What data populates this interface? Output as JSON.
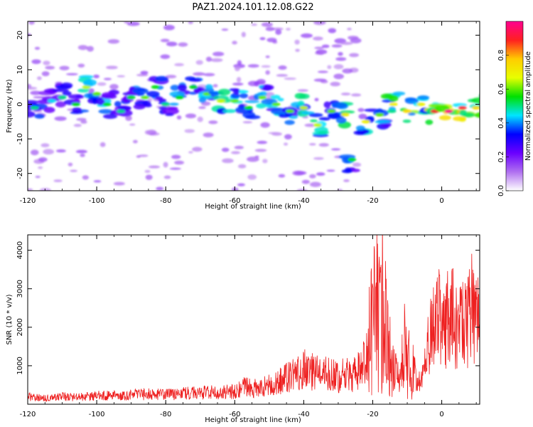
{
  "chart_data": [
    {
      "type": "heatmap",
      "title": "PAZ1.2024.101.12.08.G22",
      "xlabel": "Height of straight line (km)",
      "ylabel": "Frequency (Hz)",
      "xlim": [
        -120,
        11
      ],
      "ylim": [
        -25,
        24
      ],
      "x_ticks": [
        -120,
        -100,
        -80,
        -60,
        -40,
        -20,
        0
      ],
      "y_ticks": [
        -20,
        -10,
        0,
        10,
        20
      ],
      "colorbar": {
        "label": "Normalized spectral amplitude",
        "ticks": [
          "0.0",
          "0.2",
          "0.4",
          "0.6",
          "0.8"
        ],
        "range": [
          0,
          1
        ],
        "colormap": [
          "#ffffff",
          "#b070f0",
          "#6a00ff",
          "#0000ff",
          "#00e5ff",
          "#00e000",
          "#e8ff00",
          "#ffcc00",
          "#ff2020",
          "#ff0090"
        ]
      },
      "features": [
        {
          "x": -118,
          "y": -1,
          "a": 0.35
        },
        {
          "x": -113,
          "y": 1,
          "a": 0.3
        },
        {
          "x": -110,
          "y": 2,
          "a": 0.35
        },
        {
          "x": -106,
          "y": 0,
          "a": 0.4
        },
        {
          "x": -103,
          "y": 5,
          "a": 0.5
        },
        {
          "x": -100,
          "y": 3,
          "a": 0.45
        },
        {
          "x": -97,
          "y": 0,
          "a": 0.4
        },
        {
          "x": -93,
          "y": -2,
          "a": 0.35
        },
        {
          "x": -90,
          "y": 2,
          "a": 0.4
        },
        {
          "x": -86,
          "y": 2,
          "a": 0.45
        },
        {
          "x": -83,
          "y": 5,
          "a": 0.4
        },
        {
          "x": -80,
          "y": 0,
          "a": 0.35
        },
        {
          "x": -76,
          "y": 2,
          "a": 0.4
        },
        {
          "x": -72,
          "y": 5,
          "a": 0.4
        },
        {
          "x": -68,
          "y": 3,
          "a": 0.45
        },
        {
          "x": -64,
          "y": 1,
          "a": 0.5
        },
        {
          "x": -60,
          "y": 1,
          "a": 0.45
        },
        {
          "x": -56,
          "y": -1,
          "a": 0.4
        },
        {
          "x": -52,
          "y": 2,
          "a": 0.45
        },
        {
          "x": -48,
          "y": 0,
          "a": 0.45
        },
        {
          "x": -44,
          "y": -2,
          "a": 0.45
        },
        {
          "x": -40,
          "y": -1,
          "a": 0.5
        },
        {
          "x": -36,
          "y": -6,
          "a": 0.5
        },
        {
          "x": -32,
          "y": -2,
          "a": 0.45
        },
        {
          "x": -28,
          "y": -3,
          "a": 0.55
        },
        {
          "x": -26,
          "y": -16,
          "a": 0.4
        },
        {
          "x": -22,
          "y": -5,
          "a": 0.55
        },
        {
          "x": -18,
          "y": -3,
          "a": 0.45
        },
        {
          "x": -14,
          "y": 0,
          "a": 0.55
        },
        {
          "x": -10,
          "y": -2,
          "a": 0.6
        },
        {
          "x": -6,
          "y": 0,
          "a": 0.55
        },
        {
          "x": -2,
          "y": -2,
          "a": 0.75
        },
        {
          "x": 2,
          "y": -2,
          "a": 0.85
        },
        {
          "x": 6,
          "y": -1,
          "a": 0.75
        },
        {
          "x": 10,
          "y": -1,
          "a": 0.6
        }
      ]
    },
    {
      "type": "line",
      "xlabel": "Height of straight line (km)",
      "ylabel": "SNR (10 * v/v)",
      "xlim": [
        -120,
        11
      ],
      "ylim": [
        0,
        4400
      ],
      "x_ticks": [
        -120,
        -100,
        -80,
        -60,
        -40,
        -20,
        0
      ],
      "y_ticks": [
        1000,
        2000,
        3000,
        4000
      ],
      "color": "#ee2020",
      "x": [
        -120,
        -115,
        -110,
        -105,
        -100,
        -95,
        -90,
        -85,
        -80,
        -75,
        -70,
        -65,
        -60,
        -57,
        -55,
        -50,
        -46,
        -44,
        -42,
        -40,
        -38,
        -35,
        -32,
        -30,
        -28,
        -26,
        -24,
        -22,
        -21,
        -20,
        -19,
        -18,
        -17,
        -16,
        -15,
        -14,
        -13,
        -12,
        -11,
        -10,
        -9,
        -8,
        -7,
        -6,
        -5,
        -4,
        -3,
        -2,
        -1,
        0,
        2,
        4,
        6,
        8,
        9,
        10,
        11
      ],
      "y": [
        200,
        150,
        200,
        180,
        220,
        220,
        240,
        260,
        250,
        280,
        300,
        310,
        330,
        450,
        400,
        500,
        650,
        700,
        800,
        900,
        850,
        800,
        750,
        700,
        800,
        700,
        900,
        1100,
        1800,
        2100,
        2500,
        2000,
        3000,
        1600,
        1200,
        900,
        700,
        600,
        1500,
        1300,
        800,
        900,
        600,
        500,
        1000,
        1500,
        2000,
        2100,
        2200,
        2300,
        2300,
        2200,
        2200,
        2300,
        2600,
        2100,
        2500
      ]
    }
  ]
}
